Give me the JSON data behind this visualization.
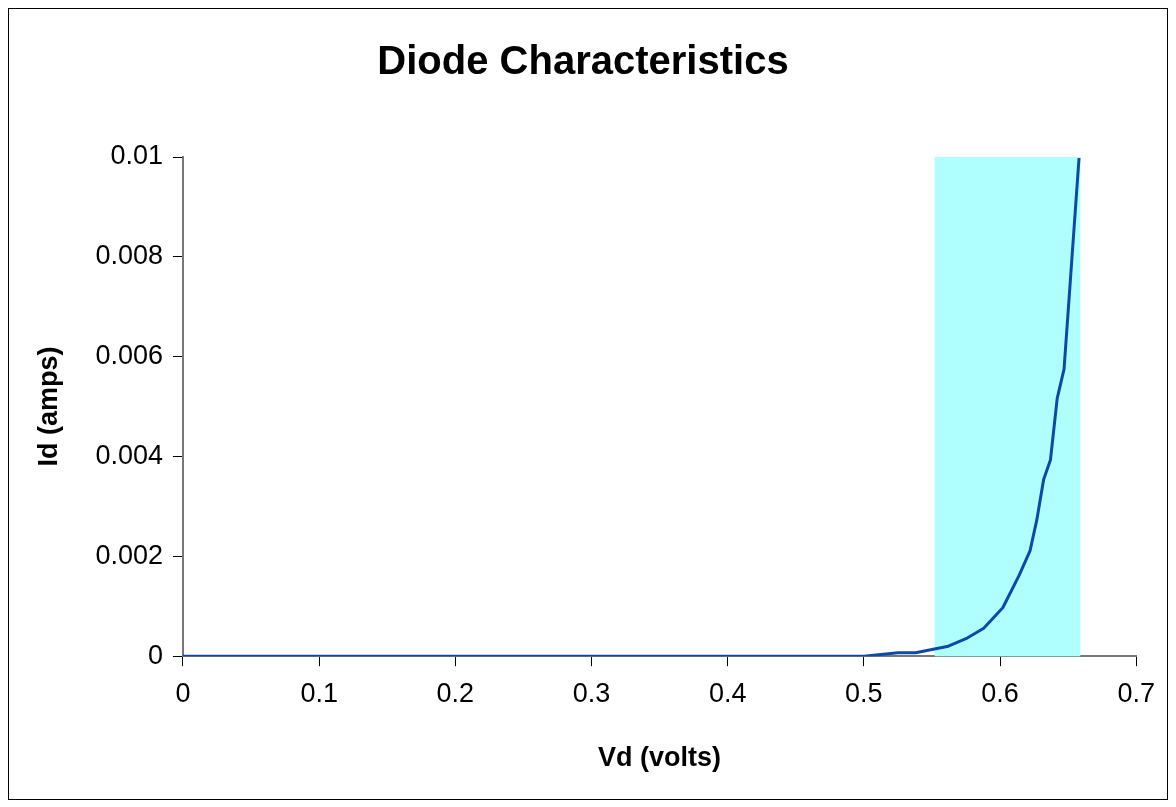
{
  "chart_data": {
    "type": "line",
    "title": "Diode Characteristics",
    "xlabel": "Vd (volts)",
    "ylabel": "Id (amps)",
    "x": [
      0,
      0.1,
      0.2,
      0.3,
      0.4,
      0.5,
      0.525,
      0.538,
      0.562,
      0.575,
      0.588,
      0.602,
      0.614,
      0.622,
      0.627,
      0.632,
      0.637,
      0.642,
      0.647,
      0.658
    ],
    "series": [
      {
        "color": "#0a4aa8",
        "values": [
          0,
          0,
          0,
          0,
          0,
          0,
          7e-05,
          7e-05,
          0.0002,
          0.00035,
          0.00056,
          0.00097,
          0.00162,
          0.00211,
          0.00273,
          0.00354,
          0.00393,
          0.00517,
          0.00575,
          0.00998
        ]
      }
    ],
    "xlim": [
      0,
      0.7
    ],
    "xticks": [
      0,
      0.1,
      0.2,
      0.3,
      0.4,
      0.5,
      0.6,
      0.7
    ],
    "ylim": [
      0,
      0.01
    ],
    "yticks": [
      0,
      0.002,
      0.004,
      0.006,
      0.008,
      0.01
    ],
    "bands": [
      {
        "axis": "x",
        "from": 0.552,
        "to": 0.659,
        "color": "#b0ffff"
      }
    ],
    "grid": false,
    "legend": false,
    "marker": "none",
    "line_style": "solid"
  }
}
